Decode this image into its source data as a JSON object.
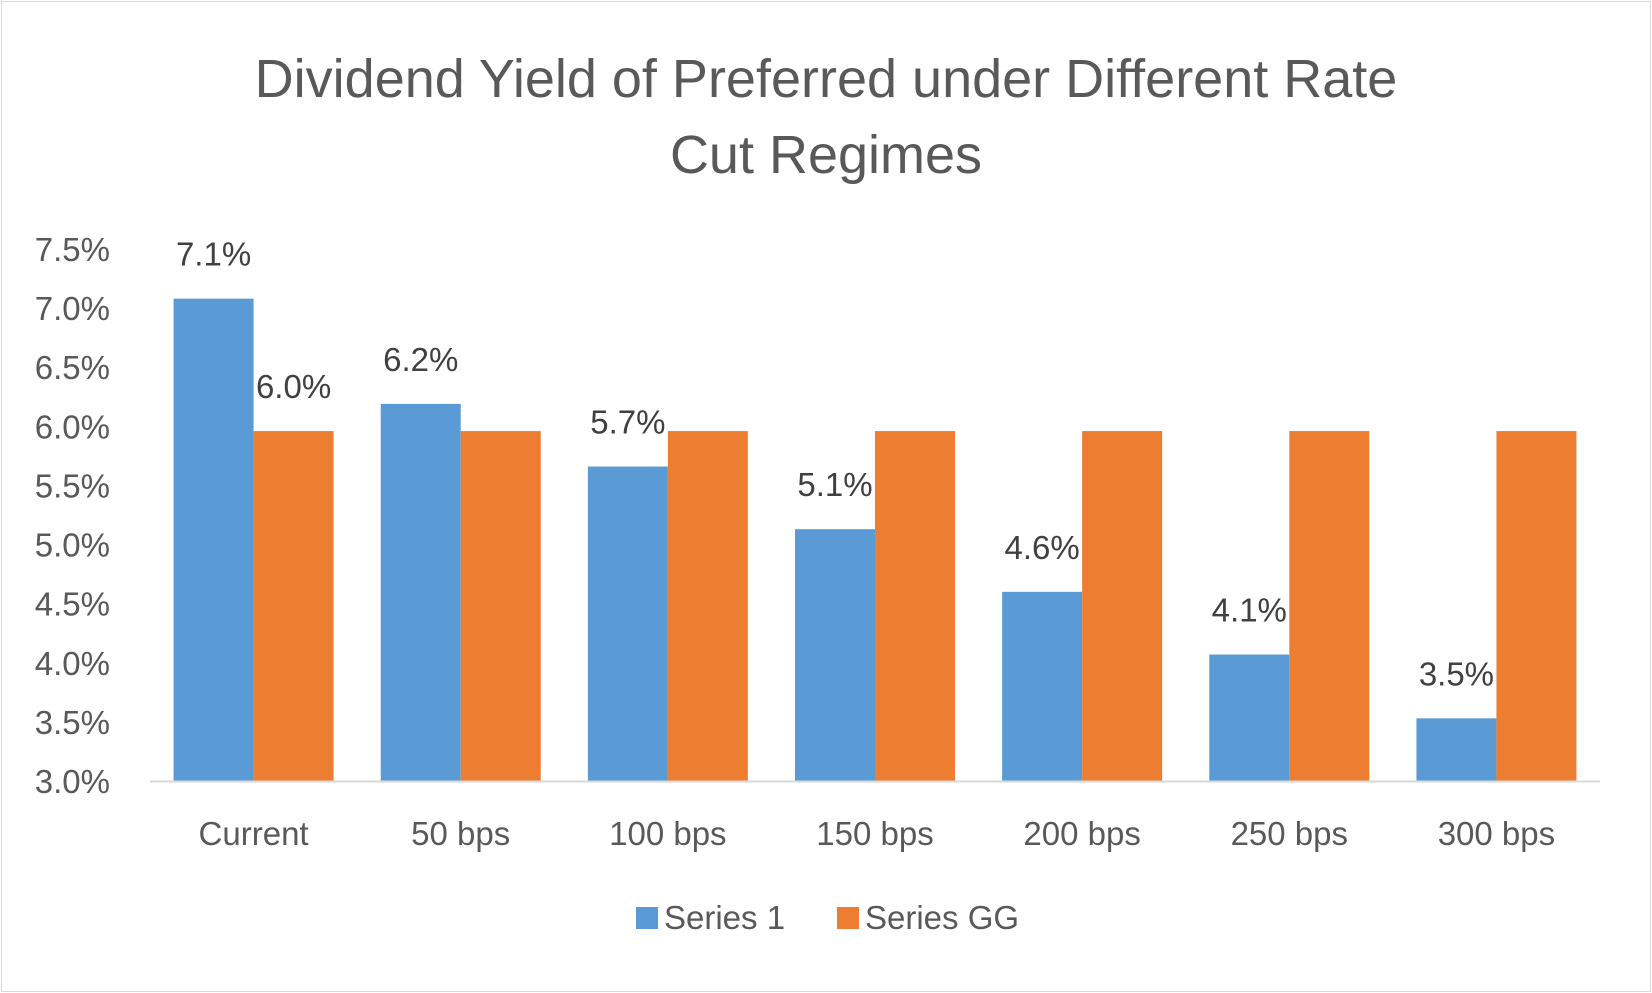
{
  "chart_data": {
    "type": "bar",
    "title_lines": [
      "Dividend Yield of Preferred under Different Rate",
      "Cut Regimes"
    ],
    "xlabel": "",
    "ylabel": "",
    "categories": [
      "Current",
      "50 bps",
      "100 bps",
      "150 bps",
      "200 bps",
      "250 bps",
      "300 bps"
    ],
    "ylim": [
      3.0,
      7.5
    ],
    "yticks": [
      3.0,
      3.5,
      4.0,
      4.5,
      5.0,
      5.5,
      6.0,
      6.5,
      7.0,
      7.5
    ],
    "ytick_labels": [
      "3.0%",
      "3.5%",
      "4.0%",
      "4.5%",
      "5.0%",
      "5.5%",
      "6.0%",
      "6.5%",
      "7.0%",
      "7.5%"
    ],
    "grid": false,
    "legend_position": "bottom",
    "series": [
      {
        "name": "Series 1",
        "color": "#5B9BD5",
        "values": [
          7.08,
          6.19,
          5.66,
          5.13,
          4.6,
          4.07,
          3.53
        ],
        "data_labels": [
          "7.1%",
          "6.2%",
          "5.7%",
          "5.1%",
          "4.6%",
          "4.1%",
          "3.5%"
        ]
      },
      {
        "name": "Series GG",
        "color": "#ED7D31",
        "values": [
          5.96,
          5.96,
          5.96,
          5.96,
          5.96,
          5.96,
          5.96
        ],
        "data_labels": [
          "6.0%",
          "",
          "",
          "",
          "",
          "",
          ""
        ]
      }
    ]
  }
}
